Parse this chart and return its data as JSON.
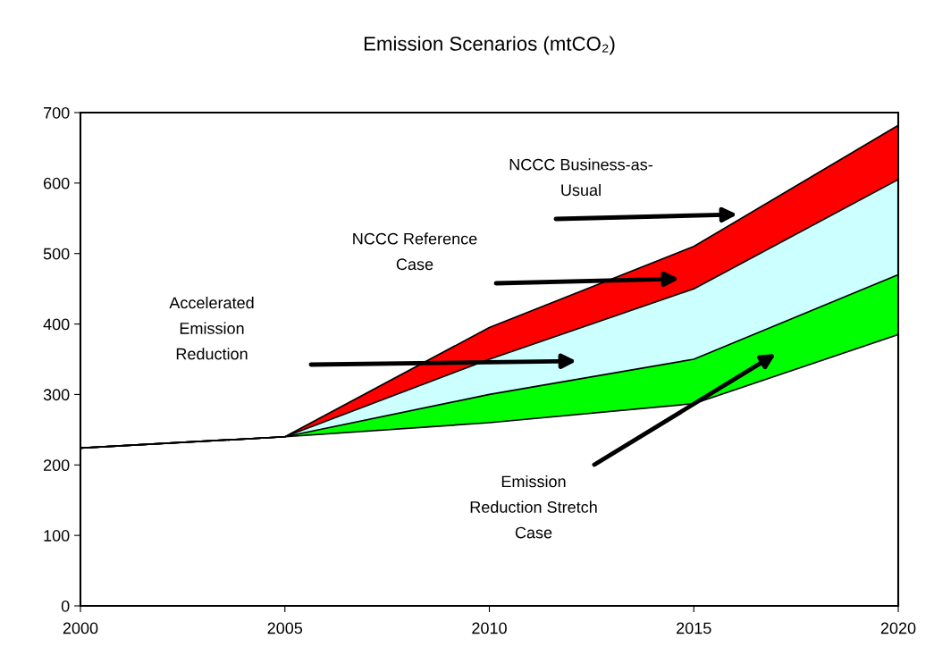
{
  "chart_data": {
    "type": "area",
    "stacked": true,
    "title": "Emission Scenarios (mtCO₂)",
    "x": [
      2000,
      2005,
      2010,
      2015,
      2020
    ],
    "series": [
      {
        "color": "#ffffff",
        "values": [
          224,
          240,
          260,
          287,
          385
        ]
      },
      {
        "color": "#00ff00",
        "values": [
          0,
          0,
          40,
          63,
          85
        ]
      },
      {
        "color": "#ccffff",
        "values": [
          0,
          0,
          50,
          100,
          135
        ]
      },
      {
        "color": "#ff0000",
        "values": [
          0,
          0,
          45,
          60,
          77
        ]
      }
    ],
    "xlim": [
      2000,
      2020
    ],
    "xticks": [
      2000,
      2005,
      2010,
      2015,
      2020
    ],
    "ylim": [
      0,
      700
    ],
    "yticks": [
      0,
      100,
      200,
      300,
      400,
      500,
      600,
      700
    ],
    "grid": false,
    "annotations": [
      "NCCC Business-as-\nUsual",
      "NCCC Reference\nCase",
      "Accelerated\nEmission\nReduction",
      "Emission\nReduction Stretch\nCase"
    ]
  }
}
